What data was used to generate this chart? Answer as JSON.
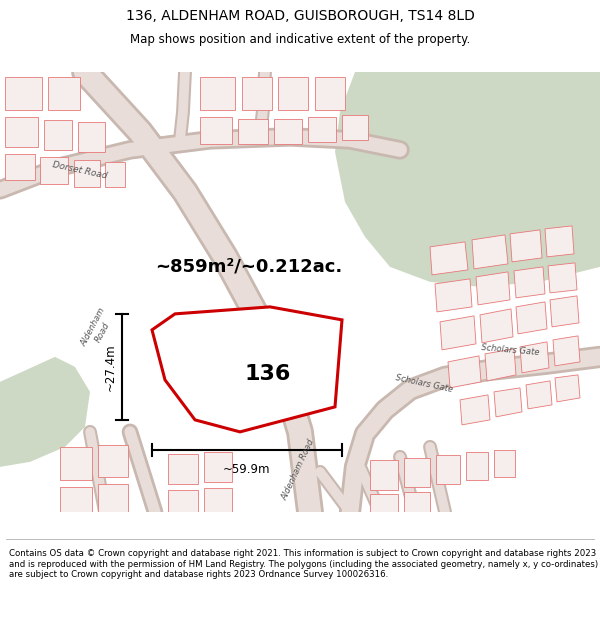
{
  "title_line1": "136, ALDENHAM ROAD, GUISBOROUGH, TS14 8LD",
  "title_line2": "Map shows position and indicative extent of the property.",
  "footer_text": "Contains OS data © Crown copyright and database right 2021. This information is subject to Crown copyright and database rights 2023 and is reproduced with the permission of HM Land Registry. The polygons (including the associated geometry, namely x, y co-ordinates) are subject to Crown copyright and database rights 2023 Ordnance Survey 100026316.",
  "bg_color": "#ffffff",
  "map_bg": "#f2eeea",
  "green_color": "#cdd9c5",
  "road_fill": "#e8ddd8",
  "road_edge": "#c8b8b0",
  "building_edge": "#e87878",
  "building_fill": "#f5eeec",
  "highlight_color": "#cc0000",
  "area_label": "~859m²/~0.212ac.",
  "dim_width_label": "~59.9m",
  "dim_height_label": "~27.4m",
  "title_fontsize": 10,
  "subtitle_fontsize": 8.5,
  "footer_fontsize": 6.2,
  "label_136_fontsize": 16,
  "area_label_fontsize": 13
}
